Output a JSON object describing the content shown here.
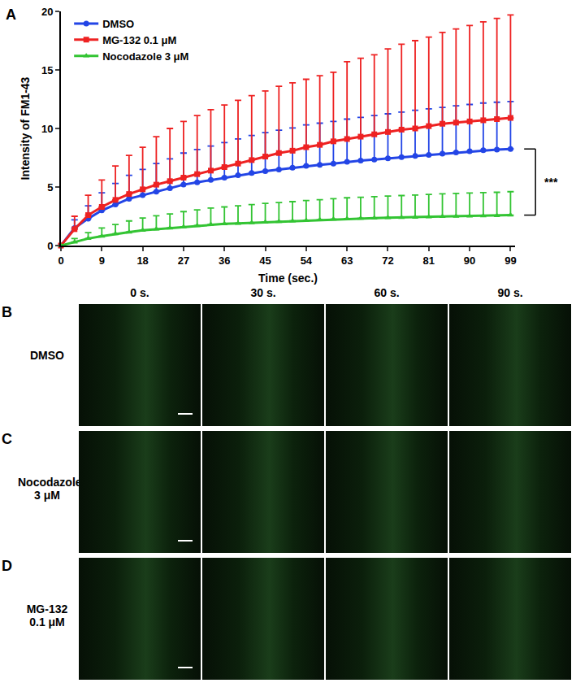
{
  "chart_data": {
    "type": "line",
    "panel": "A",
    "x_label": "Time (sec.)",
    "y_label": "Intensity of FM1-43",
    "x": [
      0,
      3,
      6,
      9,
      12,
      15,
      18,
      21,
      24,
      27,
      30,
      33,
      36,
      39,
      42,
      45,
      48,
      51,
      54,
      57,
      60,
      63,
      66,
      69,
      72,
      75,
      78,
      81,
      84,
      87,
      90,
      93,
      96,
      99
    ],
    "xlim": [
      0,
      100
    ],
    "xticks": [
      0,
      9,
      18,
      27,
      36,
      45,
      54,
      63,
      72,
      81,
      90,
      99
    ],
    "ylim": [
      0,
      20
    ],
    "yticks": [
      0,
      5,
      10,
      15,
      20
    ],
    "grid": false,
    "legend": "upper left",
    "series": [
      {
        "name": "DMSO",
        "color": "#2345e6",
        "marker": "circle",
        "values": [
          0,
          1.5,
          2.3,
          3.0,
          3.5,
          4.0,
          4.3,
          4.6,
          4.9,
          5.2,
          5.4,
          5.6,
          5.8,
          6.0,
          6.2,
          6.35,
          6.5,
          6.65,
          6.8,
          6.9,
          7.0,
          7.15,
          7.25,
          7.35,
          7.45,
          7.55,
          7.65,
          7.75,
          7.85,
          7.95,
          8.05,
          8.15,
          8.2,
          8.25
        ],
        "error_plus": [
          0,
          0.7,
          1.1,
          1.5,
          1.8,
          2.0,
          2.2,
          2.4,
          2.5,
          2.7,
          2.8,
          2.9,
          3.0,
          3.1,
          3.2,
          3.3,
          3.35,
          3.4,
          3.5,
          3.55,
          3.6,
          3.65,
          3.7,
          3.75,
          3.8,
          3.85,
          3.9,
          3.92,
          3.95,
          3.98,
          4.0,
          4.02,
          4.04,
          4.05
        ]
      },
      {
        "name": "MG-132 0.1 μM",
        "color": "#ee2222",
        "marker": "square",
        "values": [
          0,
          1.4,
          2.6,
          3.3,
          3.9,
          4.4,
          4.8,
          5.2,
          5.5,
          5.8,
          6.1,
          6.4,
          6.7,
          7.0,
          7.3,
          7.6,
          7.9,
          8.1,
          8.4,
          8.6,
          8.9,
          9.1,
          9.3,
          9.5,
          9.7,
          9.9,
          10.0,
          10.2,
          10.4,
          10.5,
          10.6,
          10.7,
          10.8,
          10.9
        ],
        "error_plus": [
          0,
          1.1,
          1.7,
          2.3,
          2.9,
          3.3,
          3.6,
          4.1,
          4.5,
          4.8,
          5.0,
          5.2,
          5.3,
          5.4,
          5.5,
          5.6,
          5.7,
          5.8,
          5.8,
          5.9,
          5.9,
          6.6,
          6.7,
          6.8,
          7.1,
          7.3,
          7.5,
          7.6,
          7.8,
          8.0,
          8.2,
          8.4,
          8.6,
          8.8
        ]
      },
      {
        "name": "Nocodazole 3 μM",
        "color": "#33c433",
        "marker": "triangle-up",
        "values": [
          0,
          0.3,
          0.6,
          0.8,
          1.0,
          1.15,
          1.3,
          1.4,
          1.5,
          1.6,
          1.7,
          1.8,
          1.85,
          1.9,
          1.95,
          2.0,
          2.05,
          2.1,
          2.15,
          2.2,
          2.25,
          2.3,
          2.32,
          2.35,
          2.38,
          2.4,
          2.42,
          2.45,
          2.48,
          2.5,
          2.52,
          2.54,
          2.56,
          2.6
        ],
        "error_plus": [
          0,
          0.3,
          0.5,
          0.7,
          0.8,
          0.95,
          1.05,
          1.15,
          1.2,
          1.3,
          1.35,
          1.4,
          1.45,
          1.5,
          1.55,
          1.6,
          1.62,
          1.65,
          1.7,
          1.72,
          1.75,
          1.78,
          1.8,
          1.82,
          1.85,
          1.87,
          1.9,
          1.92,
          1.94,
          1.96,
          1.97,
          1.98,
          1.99,
          2.0
        ]
      }
    ],
    "significance": {
      "between": [
        "DMSO",
        "Nocodazole 3 μM"
      ],
      "label": "***"
    }
  },
  "image_grid": {
    "time_labels": [
      "0 s.",
      "30 s.",
      "60 s.",
      "90 s."
    ],
    "rows": [
      {
        "panel": "B",
        "label": "DMSO"
      },
      {
        "panel": "C",
        "label": "Nocodazole 3 μM"
      },
      {
        "panel": "D",
        "label": "MG-132 0.1 μM"
      }
    ]
  }
}
